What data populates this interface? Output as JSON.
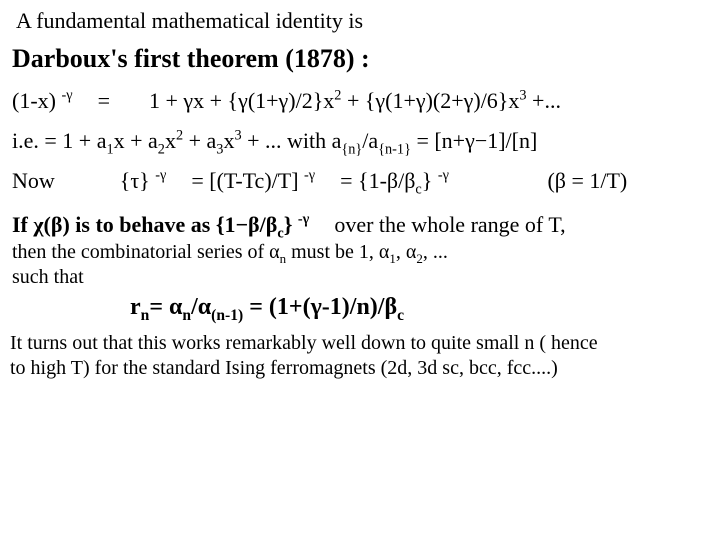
{
  "intro": "A fundamental mathematical identity is",
  "title": "Darboux's first theorem (1878) :",
  "expansion": {
    "lhs": "(1-x)",
    "lhs_sup": "-γ",
    "eq": "=",
    "rhs": "1 + γx + {γ(1+γ)/2}x",
    "rhs_sup2": "2",
    "rhs_mid": " + {γ(1+γ)(2+γ)/6}x",
    "rhs_sup3": "3",
    "rhs_tail": " +..."
  },
  "ie": {
    "prefix": "i.e.  =  1 + a",
    "s1": "1",
    "t1": "x + a",
    "s2": "2",
    "t2": "x",
    "e2": "2",
    "t3": " + a",
    "s3": "3",
    "t4": "x",
    "e3": "3",
    "t5": " + ... with a",
    "sn": "{n}",
    "t6": "/a",
    "snm": "{n-1}",
    "t7": " =  [n+γ−1]/[n]"
  },
  "now": {
    "label": "Now",
    "tau": "{τ}",
    "sup": "-γ",
    "eq1": "= [(T-Tc)/T]",
    "eq2": "= {1-β/β",
    "subc": "c",
    "close": "}",
    "paren": "(β = 1/T)"
  },
  "ifline": {
    "p1": "If χ(β) is to behave as {1−β/β",
    "subc": "c",
    "p2": "}",
    "sup": "-γ",
    "p3": "over the whole range of T,"
  },
  "then": {
    "l1_a": "then the combinatorial series of α",
    "l1_sub": "n",
    "l1_b": " must be 1, α",
    "l1_s1": "1",
    "l1_c": ", α",
    "l1_s2": "2",
    "l1_d": ", ...",
    "l2": "such that"
  },
  "rn": {
    "p1": "r",
    "s1": "n",
    "p2": "= α",
    "s2": "n",
    "p3": "/α",
    "s3": "(n-1)",
    "p4": " = (1+(γ-1)/n)/β",
    "s4": "c"
  },
  "conc": {
    "l1": "It turns out that this works remarkably well down to quite small n ( hence",
    "l2": "to high T) for the standard Ising ferromagnets (2d, 3d sc, bcc, fcc....)"
  },
  "colors": {
    "text": "#000000",
    "bg": "#ffffff"
  },
  "fonts": {
    "family": "Times New Roman",
    "title_size_pt": 26,
    "body_size_pt": 22
  }
}
